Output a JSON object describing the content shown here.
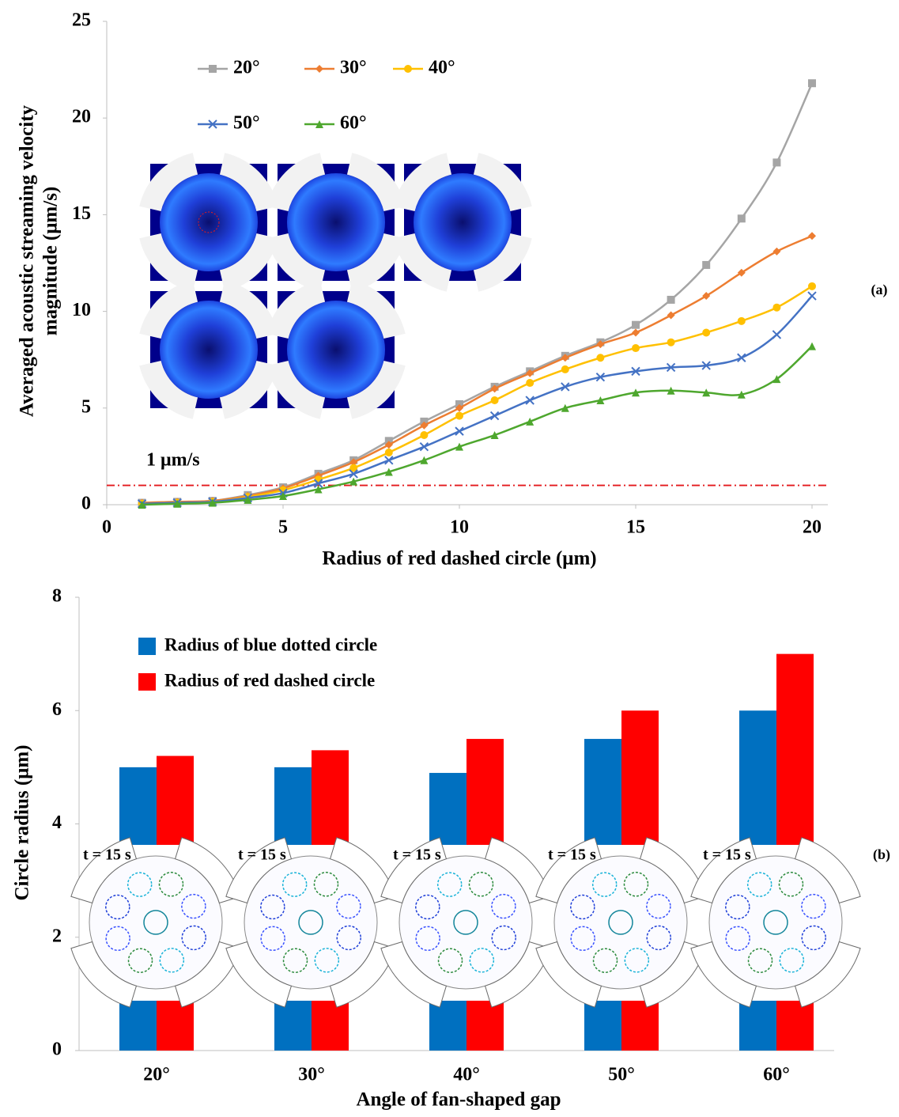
{
  "chart_data": [
    {
      "type": "line",
      "panel_label": "(a)",
      "x_label": "Radius of red dashed circle (μm)",
      "y_label": [
        "Averaged acoustic streaming velocity",
        "magnitude (μm/s)"
      ],
      "x": [
        1,
        2,
        3,
        4,
        5,
        6,
        7,
        8,
        9,
        10,
        11,
        12,
        13,
        14,
        15,
        16,
        17,
        18,
        19,
        20
      ],
      "xlim": [
        0,
        20
      ],
      "xticks": [
        0,
        5,
        10,
        15,
        20
      ],
      "ylim": [
        0,
        25
      ],
      "yticks": [
        0,
        5,
        10,
        15,
        20,
        25
      ],
      "reference_line": {
        "value": 1,
        "label": "1 μm/s",
        "color": "#e31a1c"
      },
      "series": [
        {
          "name": "20°",
          "color": "#a5a5a5",
          "marker": "square",
          "values": [
            0.1,
            0.15,
            0.2,
            0.5,
            0.9,
            1.6,
            2.3,
            3.3,
            4.3,
            5.2,
            6.1,
            6.9,
            7.7,
            8.4,
            9.3,
            10.6,
            12.4,
            14.8,
            17.7,
            21.8
          ]
        },
        {
          "name": "30°",
          "color": "#ed7d31",
          "marker": "diamond",
          "values": [
            0.1,
            0.15,
            0.2,
            0.45,
            0.85,
            1.5,
            2.2,
            3.1,
            4.1,
            5.0,
            6.0,
            6.8,
            7.6,
            8.3,
            8.9,
            9.8,
            10.8,
            12.0,
            13.1,
            13.9
          ]
        },
        {
          "name": "40°",
          "color": "#ffc000",
          "marker": "circle",
          "values": [
            0.05,
            0.1,
            0.15,
            0.4,
            0.75,
            1.3,
            1.9,
            2.7,
            3.6,
            4.6,
            5.4,
            6.3,
            7.0,
            7.6,
            8.1,
            8.4,
            8.9,
            9.5,
            10.2,
            11.3
          ]
        },
        {
          "name": "50°",
          "color": "#4472c4",
          "marker": "x",
          "values": [
            0.05,
            0.1,
            0.15,
            0.35,
            0.6,
            1.1,
            1.6,
            2.3,
            3.0,
            3.8,
            4.6,
            5.4,
            6.1,
            6.6,
            6.9,
            7.1,
            7.2,
            7.6,
            8.8,
            10.8
          ]
        },
        {
          "name": "60°",
          "color": "#4ea72e",
          "marker": "triangle",
          "values": [
            0,
            0.05,
            0.1,
            0.25,
            0.45,
            0.8,
            1.2,
            1.7,
            2.3,
            3.0,
            3.6,
            4.3,
            5.0,
            5.4,
            5.8,
            5.9,
            5.8,
            5.7,
            6.5,
            8.2
          ]
        }
      ]
    },
    {
      "type": "bar",
      "panel_label": "(b)",
      "x_label": "Angle of fan-shaped gap",
      "y_label": "Circle radius (μm)",
      "categories": [
        "20°",
        "30°",
        "40°",
        "50°",
        "60°"
      ],
      "ylim": [
        0,
        8
      ],
      "yticks": [
        0,
        2,
        4,
        6,
        8
      ],
      "inset_labels": [
        "t = 15 s",
        "t = 15 s",
        "t = 15 s",
        "t = 15 s",
        "t = 15 s"
      ],
      "series": [
        {
          "name": "Radius of blue dotted circle",
          "color": "#0070c0",
          "values": [
            5.0,
            5.0,
            4.9,
            5.5,
            6.0
          ]
        },
        {
          "name": "Radius of red dashed circle",
          "color": "#ff0000",
          "values": [
            5.2,
            5.3,
            5.5,
            6.0,
            7.0
          ]
        }
      ]
    }
  ]
}
